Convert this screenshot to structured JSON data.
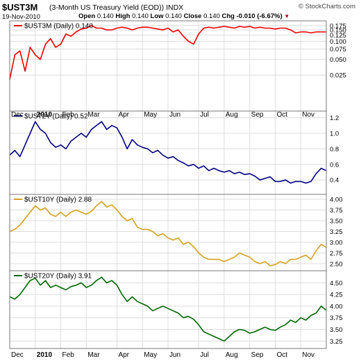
{
  "header": {
    "symbol": "$UST3M",
    "description": "(3-Month US Treasury Yield (EOD))",
    "exchange": "INDX",
    "watermark": "© StockCharts.com",
    "date": "19-Nov-2010",
    "open_label": "Open",
    "open": "0.140",
    "high_label": "High",
    "high": "0.140",
    "low_label": "Low",
    "low": "0.140",
    "close_label": "Close",
    "close": "0.140",
    "chg_label": "Chg",
    "chg": "-0.010 (-6.67%)",
    "chg_direction": "down"
  },
  "chart_data": [
    {
      "type": "line",
      "legend": "$UST3M (Daily) 0.140",
      "color": "#ee0000",
      "log_scale": true,
      "ylim": [
        0.0,
        0.2
      ],
      "yticks": [
        0.025,
        0.05,
        0.075,
        0.1,
        0.125,
        0.15,
        0.175
      ],
      "ytick_labels": [
        "0.025",
        "0.050",
        "0.075",
        "0.100",
        "0.125",
        "0.150",
        "0.175"
      ],
      "x": [
        0,
        4,
        8,
        12,
        16,
        20,
        24,
        28,
        32,
        36,
        40,
        44,
        48,
        52,
        56,
        60,
        64,
        68,
        72,
        76,
        80,
        84,
        88,
        92,
        96,
        100,
        104,
        108,
        112,
        116,
        120,
        124,
        128,
        132,
        136,
        140,
        144,
        148,
        152,
        156,
        160,
        164,
        168,
        172,
        176,
        180,
        184,
        188,
        192,
        196,
        200,
        204,
        208,
        212,
        216,
        220,
        224,
        228,
        232,
        236,
        240,
        244,
        248
      ],
      "values": [
        0.02,
        0.06,
        0.07,
        0.03,
        0.08,
        0.06,
        0.05,
        0.09,
        0.11,
        0.08,
        0.09,
        0.13,
        0.12,
        0.14,
        0.155,
        0.16,
        0.175,
        0.16,
        0.16,
        0.15,
        0.15,
        0.16,
        0.165,
        0.16,
        0.15,
        0.16,
        0.165,
        0.165,
        0.16,
        0.155,
        0.15,
        0.16,
        0.14,
        0.15,
        0.12,
        0.1,
        0.09,
        0.13,
        0.16,
        0.165,
        0.16,
        0.165,
        0.17,
        0.165,
        0.16,
        0.17,
        0.165,
        0.17,
        0.16,
        0.165,
        0.16,
        0.16,
        0.155,
        0.16,
        0.16,
        0.15,
        0.135,
        0.14,
        0.14,
        0.135,
        0.14,
        0.14,
        0.14
      ]
    },
    {
      "type": "line",
      "legend": "$UST2Y (Daily) 0.52",
      "color": "#000080",
      "ylim": [
        0.25,
        1.25
      ],
      "yticks": [
        0.4,
        0.6,
        0.8,
        1.0,
        1.2
      ],
      "ytick_labels": [
        "0.4",
        "0.6",
        "0.8",
        "1.0",
        "1.2"
      ],
      "x": [
        0,
        4,
        8,
        12,
        16,
        20,
        24,
        28,
        32,
        36,
        40,
        44,
        48,
        52,
        56,
        60,
        64,
        68,
        72,
        76,
        80,
        84,
        88,
        92,
        96,
        100,
        104,
        108,
        112,
        116,
        120,
        124,
        128,
        132,
        136,
        140,
        144,
        148,
        152,
        156,
        160,
        164,
        168,
        172,
        176,
        180,
        184,
        188,
        192,
        196,
        200,
        204,
        208,
        212,
        216,
        220,
        224,
        228,
        232,
        236,
        240,
        244,
        248
      ],
      "values": [
        0.72,
        0.78,
        0.7,
        0.85,
        1.0,
        1.15,
        1.05,
        1.0,
        0.88,
        0.82,
        0.85,
        0.8,
        0.9,
        0.95,
        1.0,
        0.95,
        1.05,
        1.1,
        1.15,
        1.05,
        1.1,
        1.07,
        0.95,
        0.8,
        0.92,
        0.85,
        0.82,
        0.8,
        0.75,
        0.78,
        0.72,
        0.68,
        0.7,
        0.65,
        0.62,
        0.58,
        0.6,
        0.55,
        0.58,
        0.52,
        0.55,
        0.52,
        0.5,
        0.52,
        0.48,
        0.5,
        0.47,
        0.48,
        0.45,
        0.4,
        0.42,
        0.44,
        0.38,
        0.38,
        0.4,
        0.36,
        0.38,
        0.38,
        0.36,
        0.38,
        0.48,
        0.55,
        0.52
      ]
    },
    {
      "type": "line",
      "legend": "$UST10Y (Daily) 2.88",
      "color": "#d4a020",
      "ylim": [
        2.4,
        4.05
      ],
      "yticks": [
        2.5,
        2.75,
        3.0,
        3.25,
        3.5,
        3.75,
        4.0
      ],
      "ytick_labels": [
        "2.50",
        "2.75",
        "3.00",
        "3.25",
        "3.50",
        "3.75",
        "4.00"
      ],
      "x": [
        0,
        4,
        8,
        12,
        16,
        20,
        24,
        28,
        32,
        36,
        40,
        44,
        48,
        52,
        56,
        60,
        64,
        68,
        72,
        76,
        80,
        84,
        88,
        92,
        96,
        100,
        104,
        108,
        112,
        116,
        120,
        124,
        128,
        132,
        136,
        140,
        144,
        148,
        152,
        156,
        160,
        164,
        168,
        172,
        176,
        180,
        184,
        188,
        192,
        196,
        200,
        204,
        208,
        212,
        216,
        220,
        224,
        228,
        232,
        236,
        240,
        244,
        248
      ],
      "values": [
        3.25,
        3.3,
        3.4,
        3.55,
        3.7,
        3.85,
        3.75,
        3.8,
        3.65,
        3.6,
        3.7,
        3.6,
        3.7,
        3.75,
        3.7,
        3.65,
        3.72,
        3.85,
        3.95,
        3.82,
        3.87,
        3.75,
        3.6,
        3.5,
        3.55,
        3.35,
        3.3,
        3.3,
        3.25,
        3.15,
        3.2,
        3.1,
        3.05,
        3.1,
        2.95,
        3.0,
        2.9,
        2.75,
        2.65,
        2.6,
        2.6,
        2.6,
        2.55,
        2.6,
        2.65,
        2.75,
        2.7,
        2.65,
        2.55,
        2.5,
        2.55,
        2.45,
        2.48,
        2.55,
        2.5,
        2.6,
        2.6,
        2.65,
        2.7,
        2.6,
        2.8,
        2.95,
        2.88
      ]
    },
    {
      "type": "line",
      "legend": "$UST20Y (Daily) 3.91",
      "color": "#006600",
      "ylim": [
        3.15,
        4.7
      ],
      "yticks": [
        3.25,
        3.5,
        3.75,
        4.0,
        4.25,
        4.5
      ],
      "ytick_labels": [
        "3.25",
        "3.50",
        "3.75",
        "4.00",
        "4.25",
        "4.50"
      ],
      "x": [
        0,
        4,
        8,
        12,
        16,
        20,
        24,
        28,
        32,
        36,
        40,
        44,
        48,
        52,
        56,
        60,
        64,
        68,
        72,
        76,
        80,
        84,
        88,
        92,
        96,
        100,
        104,
        108,
        112,
        116,
        120,
        124,
        128,
        132,
        136,
        140,
        144,
        148,
        152,
        156,
        160,
        164,
        168,
        172,
        176,
        180,
        184,
        188,
        192,
        196,
        200,
        204,
        208,
        212,
        216,
        220,
        224,
        228,
        232,
        236,
        240,
        244,
        248
      ],
      "values": [
        4.2,
        4.15,
        4.25,
        4.4,
        4.55,
        4.6,
        4.45,
        4.55,
        4.4,
        4.45,
        4.4,
        4.35,
        4.42,
        4.45,
        4.5,
        4.4,
        4.45,
        4.55,
        4.62,
        4.5,
        4.55,
        4.45,
        4.25,
        4.1,
        4.2,
        4.1,
        4.05,
        4.0,
        3.9,
        3.95,
        4.0,
        3.95,
        3.9,
        3.85,
        3.75,
        3.78,
        3.72,
        3.6,
        3.45,
        3.4,
        3.35,
        3.3,
        3.25,
        3.35,
        3.45,
        3.5,
        3.48,
        3.42,
        3.45,
        3.5,
        3.55,
        3.5,
        3.48,
        3.55,
        3.6,
        3.7,
        3.65,
        3.75,
        3.7,
        3.8,
        3.85,
        4.0,
        3.91
      ]
    }
  ],
  "x_axis": {
    "labels": [
      "Dec",
      "2010",
      "Feb",
      "Mar",
      "Apr",
      "May",
      "Jun",
      "Jul",
      "Aug",
      "Sep",
      "Oct",
      "Nov"
    ],
    "bold_index": 1,
    "positions": [
      0,
      20,
      40,
      60,
      84,
      104,
      124,
      148,
      168,
      188,
      208,
      228
    ]
  }
}
